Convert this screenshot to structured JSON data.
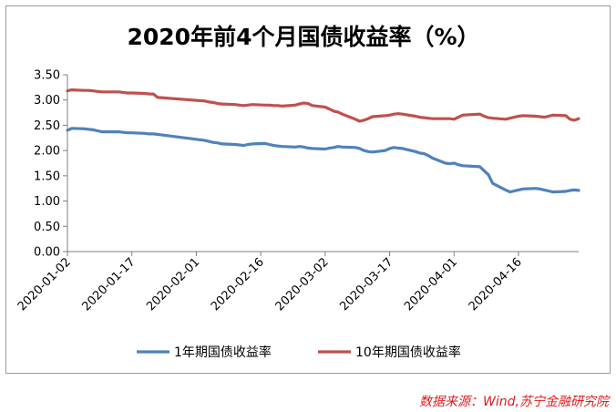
{
  "chart_data": {
    "type": "line",
    "title": "2020年前4个月国债收益率（%）",
    "xlabel": "",
    "ylabel": "",
    "ylim": [
      0,
      3.5
    ],
    "yticks": [
      "0.00",
      "0.50",
      "1.00",
      "1.50",
      "2.00",
      "2.50",
      "3.00",
      "3.50"
    ],
    "xticks": [
      "2020-01-02",
      "2020-01-17",
      "2020-02-01",
      "2020-02-16",
      "2020-03-02",
      "2020-03-17",
      "2020-04-01",
      "2020-04-16"
    ],
    "grid": false,
    "legend_position": "bottom",
    "x_dates": [
      "2020-01-02",
      "2020-01-03",
      "2020-01-06",
      "2020-01-07",
      "2020-01-08",
      "2020-01-09",
      "2020-01-10",
      "2020-01-13",
      "2020-01-14",
      "2020-01-15",
      "2020-01-16",
      "2020-01-17",
      "2020-01-20",
      "2020-01-21",
      "2020-01-22",
      "2020-01-23",
      "2020-02-03",
      "2020-02-04",
      "2020-02-05",
      "2020-02-06",
      "2020-02-07",
      "2020-02-10",
      "2020-02-11",
      "2020-02-12",
      "2020-02-13",
      "2020-02-14",
      "2020-02-17",
      "2020-02-18",
      "2020-02-19",
      "2020-02-20",
      "2020-02-21",
      "2020-02-24",
      "2020-02-25",
      "2020-02-26",
      "2020-02-27",
      "2020-02-28",
      "2020-03-02",
      "2020-03-03",
      "2020-03-04",
      "2020-03-05",
      "2020-03-06",
      "2020-03-09",
      "2020-03-10",
      "2020-03-11",
      "2020-03-12",
      "2020-03-13",
      "2020-03-16",
      "2020-03-17",
      "2020-03-18",
      "2020-03-19",
      "2020-03-20",
      "2020-03-23",
      "2020-03-24",
      "2020-03-25",
      "2020-03-26",
      "2020-03-27",
      "2020-03-30",
      "2020-03-31",
      "2020-04-01",
      "2020-04-02",
      "2020-04-03",
      "2020-04-07",
      "2020-04-08",
      "2020-04-09",
      "2020-04-10",
      "2020-04-13",
      "2020-04-14",
      "2020-04-15",
      "2020-04-16",
      "2020-04-17",
      "2020-04-20",
      "2020-04-21",
      "2020-04-22",
      "2020-04-23",
      "2020-04-24",
      "2020-04-27",
      "2020-04-28",
      "2020-04-29",
      "2020-04-30"
    ],
    "series": [
      {
        "name": "1年期国债收益率",
        "color": "#4f81bd",
        "values": [
          2.4,
          2.44,
          2.43,
          2.42,
          2.41,
          2.39,
          2.37,
          2.37,
          2.37,
          2.36,
          2.35,
          2.35,
          2.34,
          2.33,
          2.33,
          2.32,
          2.2,
          2.18,
          2.16,
          2.15,
          2.13,
          2.12,
          2.11,
          2.1,
          2.12,
          2.13,
          2.14,
          2.12,
          2.1,
          2.09,
          2.08,
          2.07,
          2.08,
          2.07,
          2.05,
          2.04,
          2.03,
          2.05,
          2.06,
          2.08,
          2.07,
          2.06,
          2.04,
          2.0,
          1.98,
          1.97,
          2.0,
          2.04,
          2.06,
          2.05,
          2.04,
          1.98,
          1.95,
          1.94,
          1.9,
          1.85,
          1.75,
          1.74,
          1.75,
          1.72,
          1.7,
          1.68,
          1.6,
          1.52,
          1.35,
          1.22,
          1.18,
          1.2,
          1.22,
          1.24,
          1.25,
          1.24,
          1.22,
          1.2,
          1.18,
          1.19,
          1.21,
          1.22,
          1.21
        ]
      },
      {
        "name": "10年期国债收益率",
        "color": "#c0504d",
        "values": [
          3.18,
          3.2,
          3.19,
          3.19,
          3.18,
          3.17,
          3.16,
          3.16,
          3.16,
          3.15,
          3.14,
          3.14,
          3.13,
          3.12,
          3.12,
          3.05,
          2.98,
          2.96,
          2.95,
          2.93,
          2.92,
          2.91,
          2.9,
          2.89,
          2.9,
          2.91,
          2.9,
          2.9,
          2.89,
          2.89,
          2.88,
          2.9,
          2.92,
          2.94,
          2.93,
          2.89,
          2.86,
          2.82,
          2.78,
          2.76,
          2.72,
          2.62,
          2.58,
          2.6,
          2.63,
          2.67,
          2.69,
          2.7,
          2.72,
          2.73,
          2.72,
          2.68,
          2.66,
          2.65,
          2.64,
          2.63,
          2.63,
          2.63,
          2.62,
          2.66,
          2.7,
          2.72,
          2.68,
          2.65,
          2.64,
          2.62,
          2.64,
          2.66,
          2.68,
          2.69,
          2.68,
          2.67,
          2.66,
          2.68,
          2.7,
          2.69,
          2.62,
          2.6,
          2.63
        ]
      }
    ]
  },
  "source_note": "数据来源：Wind,苏宁金融研究院"
}
